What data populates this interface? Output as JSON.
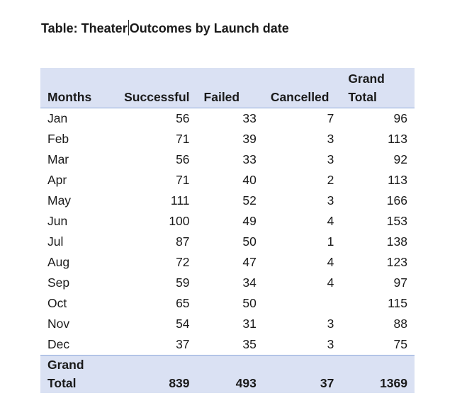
{
  "title": {
    "before_caret": "Table: Theater",
    "after_caret": "Outcomes by Launch date"
  },
  "table": {
    "headers": {
      "months": "Months",
      "successful": "Successful",
      "failed": "Failed",
      "cancelled": "Cancelled",
      "grand_total_line1": "Grand",
      "grand_total_line2": "Total"
    },
    "rows": [
      {
        "month": "Jan",
        "successful": "56",
        "failed": "33",
        "cancelled": "7",
        "total": "96"
      },
      {
        "month": "Feb",
        "successful": "71",
        "failed": "39",
        "cancelled": "3",
        "total": "113"
      },
      {
        "month": "Mar",
        "successful": "56",
        "failed": "33",
        "cancelled": "3",
        "total": "92"
      },
      {
        "month": "Apr",
        "successful": "71",
        "failed": "40",
        "cancelled": "2",
        "total": "113"
      },
      {
        "month": "May",
        "successful": "111",
        "failed": "52",
        "cancelled": "3",
        "total": "166"
      },
      {
        "month": "Jun",
        "successful": "100",
        "failed": "49",
        "cancelled": "4",
        "total": "153"
      },
      {
        "month": "Jul",
        "successful": "87",
        "failed": "50",
        "cancelled": "1",
        "total": "138"
      },
      {
        "month": "Aug",
        "successful": "72",
        "failed": "47",
        "cancelled": "4",
        "total": "123"
      },
      {
        "month": "Sep",
        "successful": "59",
        "failed": "34",
        "cancelled": "4",
        "total": "97"
      },
      {
        "month": "Oct",
        "successful": "65",
        "failed": "50",
        "cancelled": "",
        "total": "115"
      },
      {
        "month": "Nov",
        "successful": "54",
        "failed": "31",
        "cancelled": "3",
        "total": "88"
      },
      {
        "month": "Dec",
        "successful": "37",
        "failed": "35",
        "cancelled": "3",
        "total": "75"
      }
    ],
    "grand_total": {
      "label_line1": "Grand",
      "label_line2": "Total",
      "successful": "839",
      "failed": "493",
      "cancelled": "37",
      "total": "1369"
    }
  },
  "colors": {
    "header_fill": "#dae1f3",
    "rule": "#8ea9db",
    "text": "#1a1a1a"
  }
}
